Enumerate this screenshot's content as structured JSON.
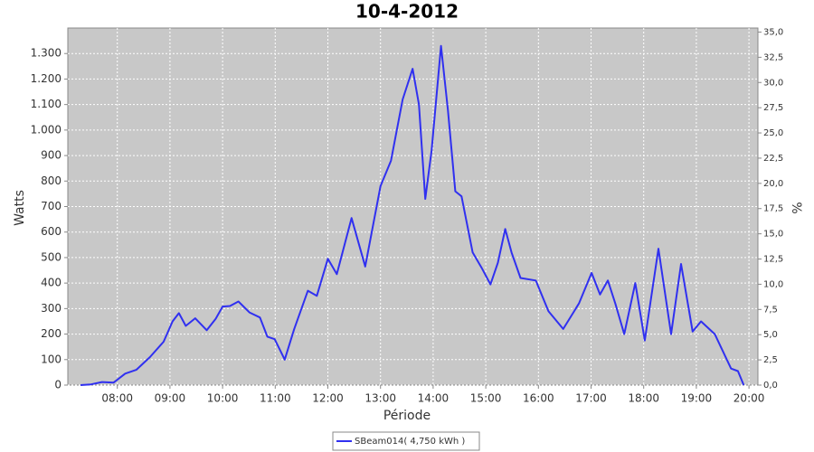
{
  "chart_data": {
    "type": "line",
    "title": "10-4-2012",
    "x_label": "Période",
    "y_label": "Watts",
    "y2_label": "%",
    "x": [
      7.3,
      7.5,
      7.71,
      7.93,
      8.15,
      8.36,
      8.62,
      8.88,
      9.05,
      9.17,
      9.3,
      9.48,
      9.7,
      9.87,
      10.0,
      10.14,
      10.3,
      10.51,
      10.71,
      10.85,
      10.99,
      11.18,
      11.36,
      11.62,
      11.79,
      12.0,
      12.17,
      12.45,
      12.71,
      13.0,
      13.2,
      13.42,
      13.61,
      13.73,
      13.85,
      13.97,
      14.15,
      14.28,
      14.42,
      14.54,
      14.75,
      14.92,
      15.09,
      15.23,
      15.37,
      15.49,
      15.66,
      15.95,
      16.19,
      16.47,
      16.77,
      17.01,
      17.17,
      17.32,
      17.46,
      17.63,
      17.84,
      18.02,
      18.28,
      18.52,
      18.71,
      18.93,
      19.09,
      19.35,
      19.66,
      19.79,
      19.9
    ],
    "series": [
      {
        "name": "SBeam014( 4,750 kWh )",
        "color": "#3030f0",
        "values": [
          0,
          3,
          12,
          10,
          45,
          60,
          110,
          170,
          250,
          282,
          232,
          262,
          215,
          260,
          308,
          310,
          328,
          285,
          265,
          190,
          180,
          100,
          220,
          370,
          350,
          495,
          435,
          655,
          465,
          780,
          880,
          1120,
          1240,
          1100,
          730,
          920,
          1330,
          1080,
          760,
          740,
          520,
          460,
          395,
          480,
          612,
          520,
          420,
          410,
          290,
          220,
          320,
          440,
          355,
          410,
          320,
          200,
          400,
          175,
          535,
          200,
          475,
          210,
          250,
          200,
          65,
          55,
          0
        ]
      }
    ],
    "xlim": [
      7.06,
      20.17
    ],
    "xticks": [
      {
        "value": 8,
        "label": "08:00"
      },
      {
        "value": 9,
        "label": "09:00"
      },
      {
        "value": 10,
        "label": "10:00"
      },
      {
        "value": 11,
        "label": "11:00"
      },
      {
        "value": 12,
        "label": "12:00"
      },
      {
        "value": 13,
        "label": "13:00"
      },
      {
        "value": 14,
        "label": "14:00"
      },
      {
        "value": 15,
        "label": "15:00"
      },
      {
        "value": 16,
        "label": "16:00"
      },
      {
        "value": 17,
        "label": "17:00"
      },
      {
        "value": 18,
        "label": "18:00"
      },
      {
        "value": 19,
        "label": "19:00"
      },
      {
        "value": 20,
        "label": "20:00"
      }
    ],
    "ylim": [
      0,
      1400
    ],
    "yticks": [
      0,
      100,
      200,
      300,
      400,
      500,
      600,
      700,
      800,
      900,
      {
        "value": 1000,
        "label": "1.000"
      },
      {
        "value": 1100,
        "label": "1.100"
      },
      {
        "value": 1200,
        "label": "1.200"
      },
      {
        "value": 1300,
        "label": "1.300"
      }
    ],
    "y2lim": [
      0,
      35.4
    ],
    "y2ticks": [
      {
        "value": 0,
        "label": "0,0"
      },
      {
        "value": 2.5,
        "label": "2,5"
      },
      {
        "value": 5,
        "label": "5,0"
      },
      {
        "value": 7.5,
        "label": "7,5"
      },
      {
        "value": 10,
        "label": "10,0"
      },
      {
        "value": 12.5,
        "label": "12,5"
      },
      {
        "value": 15,
        "label": "15,0"
      },
      {
        "value": 17.5,
        "label": "17,5"
      },
      {
        "value": 20,
        "label": "20,0"
      },
      {
        "value": 22.5,
        "label": "22,5"
      },
      {
        "value": 25,
        "label": "25,0"
      },
      {
        "value": 27.5,
        "label": "27,5"
      },
      {
        "value": 30,
        "label": "30,0"
      },
      {
        "value": 32.5,
        "label": "32,5"
      },
      {
        "value": 35,
        "label": "35,0"
      }
    ],
    "grid": true,
    "background": "#c8c8c8",
    "legend": "bottom"
  }
}
